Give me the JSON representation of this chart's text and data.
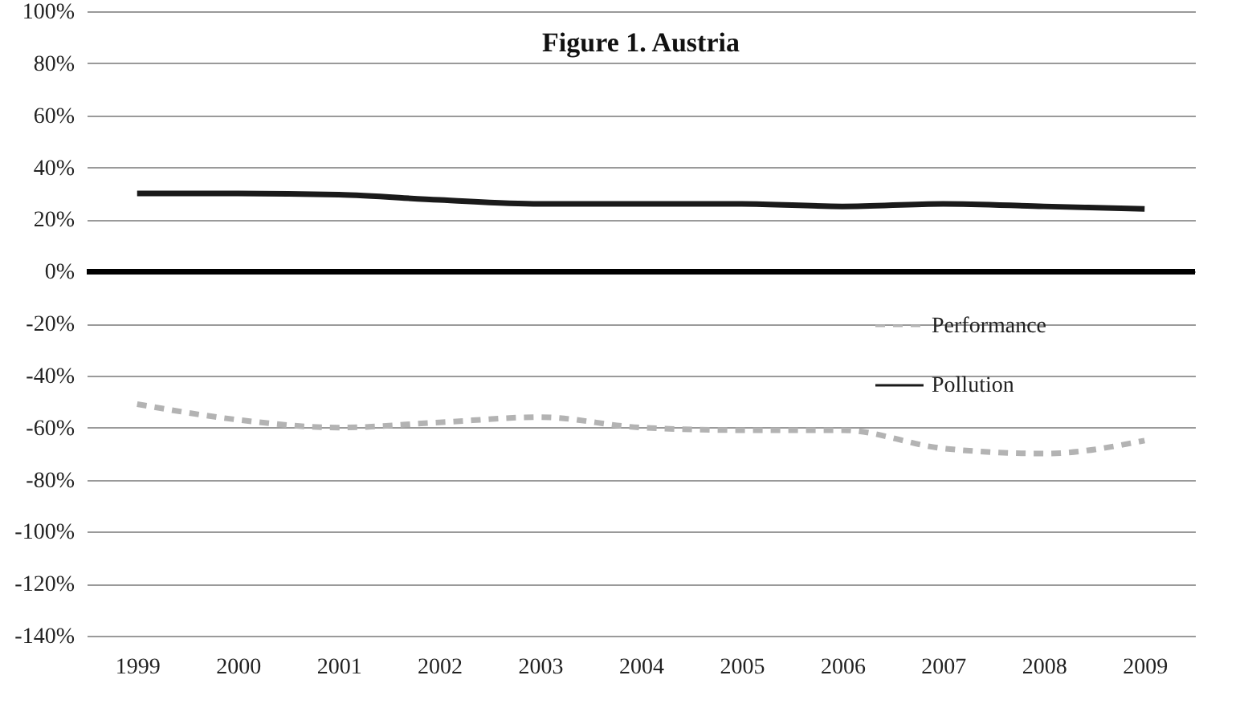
{
  "chart_data": {
    "type": "line",
    "title": "Figure 1. Austria",
    "categories": [
      "1999",
      "2000",
      "2001",
      "2002",
      "2003",
      "2004",
      "2005",
      "2006",
      "2007",
      "2008",
      "2009"
    ],
    "series": [
      {
        "name": "Performance",
        "color": "#b3b3b3",
        "line_style": "dashed",
        "values": [
          -51,
          -57,
          -60,
          -58,
          -56,
          -60,
          -61,
          -61,
          -68,
          -70,
          -65
        ]
      },
      {
        "name": "Pollution",
        "color": "#1a1a1a",
        "line_style": "solid",
        "values": [
          30,
          30,
          29.5,
          27.5,
          26,
          26,
          26,
          25,
          26,
          25,
          24
        ]
      }
    ],
    "ylim": [
      -140,
      100
    ],
    "yticks": [
      {
        "value": -140,
        "label": "-140%"
      },
      {
        "value": -120,
        "label": "-120%"
      },
      {
        "value": -100,
        "label": "-100%"
      },
      {
        "value": -80,
        "label": "-80%"
      },
      {
        "value": -60,
        "label": "-60%"
      },
      {
        "value": -40,
        "label": "-40%"
      },
      {
        "value": -20,
        "label": "-20%"
      },
      {
        "value": 0,
        "label": "0%"
      },
      {
        "value": 20,
        "label": "20%"
      },
      {
        "value": 40,
        "label": "40%"
      },
      {
        "value": 60,
        "label": "60%"
      },
      {
        "value": 80,
        "label": "80%"
      },
      {
        "value": 100,
        "label": "100%"
      }
    ],
    "ref_lines": [
      {
        "axis": "y",
        "value": 0,
        "color": "#000000"
      }
    ],
    "grid": "y",
    "legend": "right",
    "marker": "none"
  }
}
